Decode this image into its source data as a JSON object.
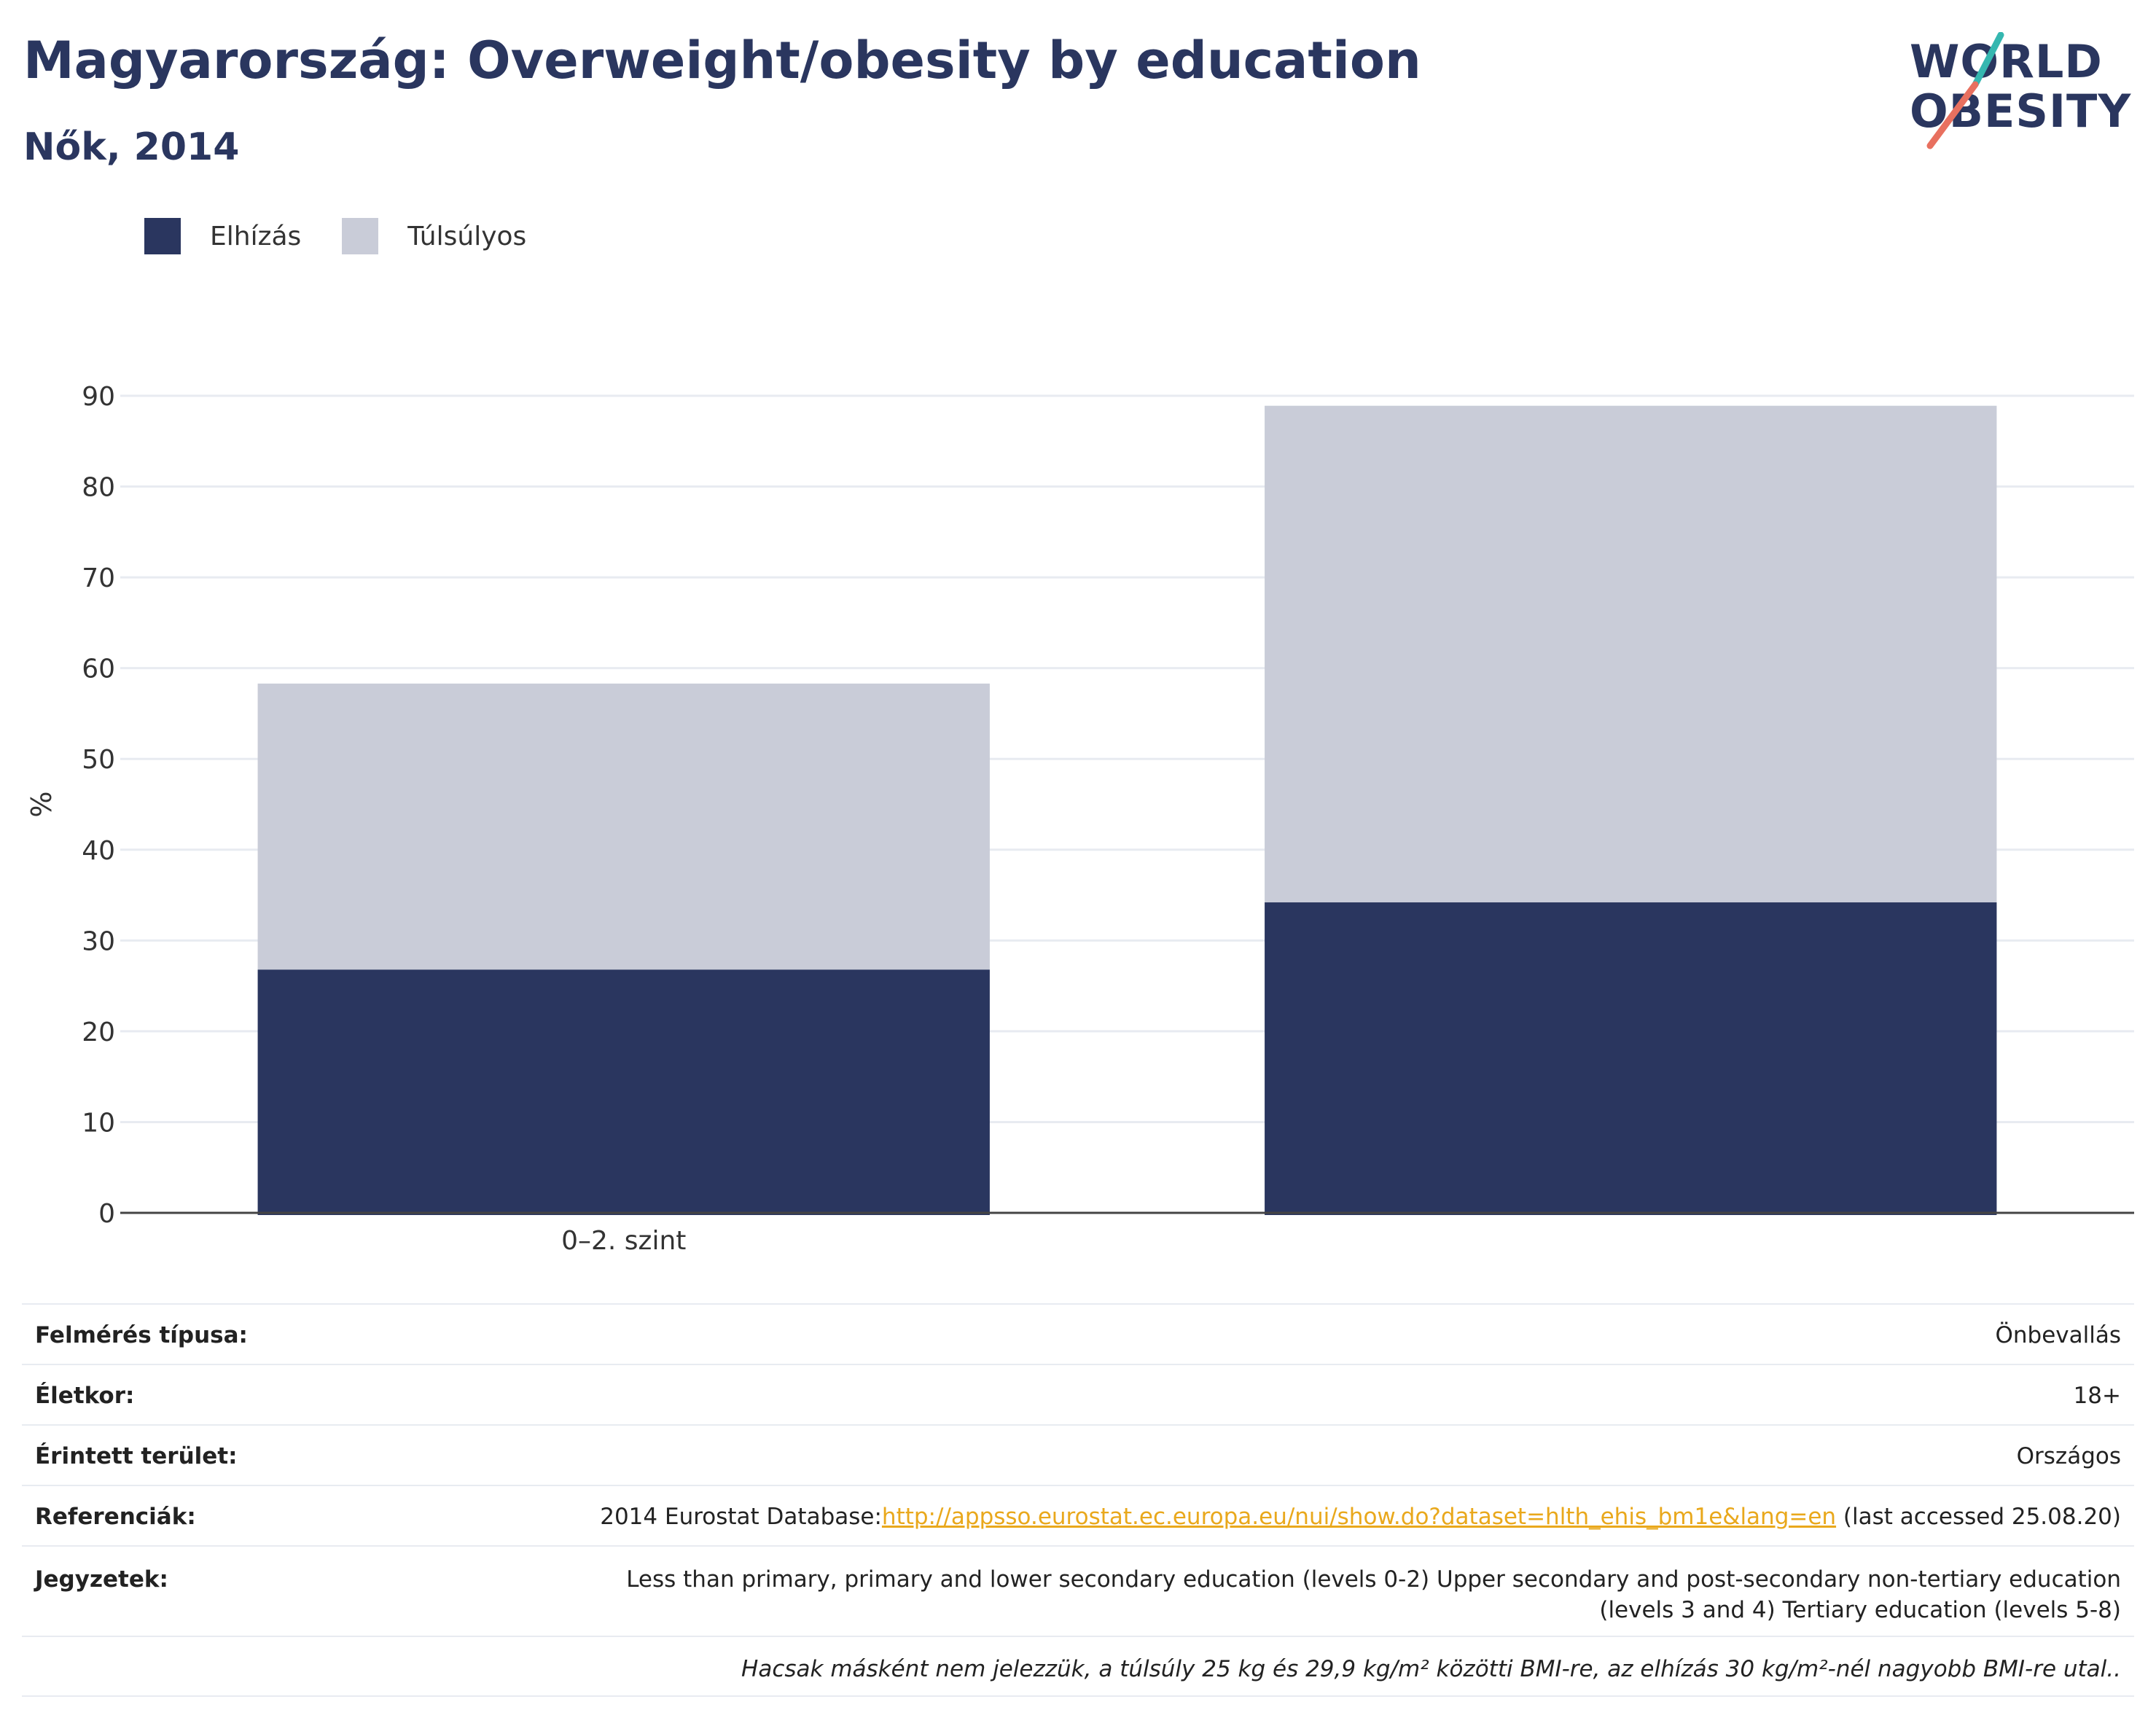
{
  "header": {
    "title": "Magyarország: Overweight/obesity by education",
    "subtitle": "Nők, 2014"
  },
  "logo": {
    "line1": "WORLD",
    "line2": "OBESITY"
  },
  "colors": {
    "obesity": "#2a365f",
    "overweight": "#c9ccd8",
    "accent_teal": "#35b7b0",
    "accent_coral": "#e8705f"
  },
  "chart_data": {
    "type": "bar",
    "stacked": true,
    "categories": [
      "0–2. szint",
      ""
    ],
    "series": [
      {
        "name": "Elhízás",
        "values": [
          26.8,
          34.2
        ]
      },
      {
        "name": "Túlsúlyos",
        "values": [
          31.5,
          54.7
        ]
      }
    ],
    "ylabel": "%",
    "ylim": [
      0,
      90
    ],
    "yticks": [
      0,
      10,
      20,
      30,
      40,
      50,
      60,
      70,
      80,
      90
    ],
    "grid": true,
    "legend_position": "top-left"
  },
  "meta": {
    "survey_type": {
      "label": "Felmérés típusa:",
      "value": "Önbevallás"
    },
    "age": {
      "label": "Életkor:",
      "value": "18+"
    },
    "area": {
      "label": "Érintett terület:",
      "value": "Országos"
    },
    "references": {
      "label": "Referenciák:",
      "prefix": "2014 Eurostat Database:",
      "link": "http://appsso.eurostat.ec.europa.eu/nui/show.do?dataset=hlth_ehis_bm1e&lang=en",
      "suffix": " (last accessed 25.08.20)"
    },
    "notes": {
      "label": "Jegyzetek:",
      "line1": "Less than primary, primary and lower secondary education (levels 0-2) Upper secondary and post-secondary non-tertiary education",
      "line2": "(levels 3 and 4) Tertiary education (levels 5-8)"
    },
    "footnote": "Hacsak másként nem jelezzük, a túlsúly 25 kg és 29,9 kg/m² közötti BMI-re, az elhízás 30 kg/m²-nél nagyobb BMI-re utal.."
  }
}
